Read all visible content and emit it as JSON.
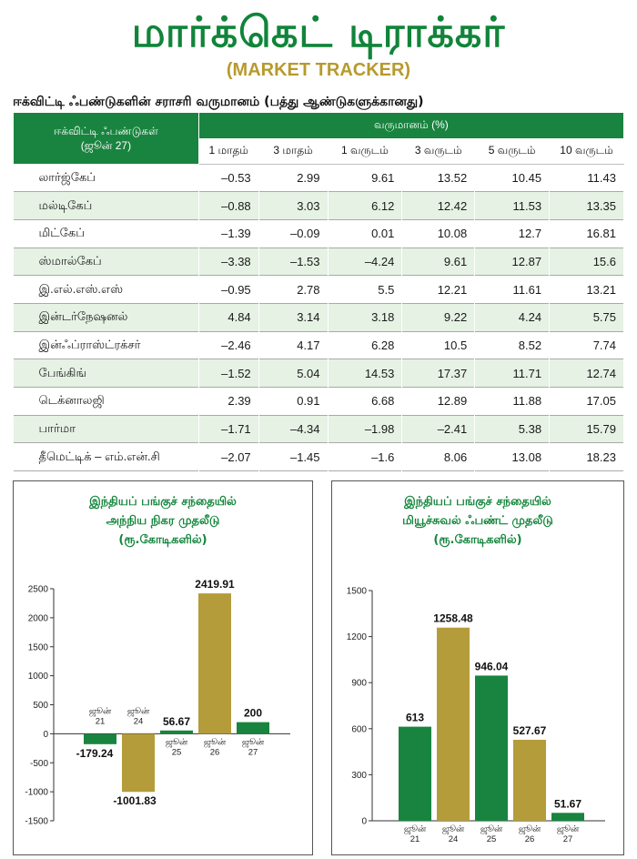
{
  "header": {
    "title": "மார்க்கெட் டிராக்கர்",
    "subtitle": "(MARKET TRACKER)",
    "caption": "ஈக்விட்டி ஃபண்டுகளின் சராசரி வருமானம் (பத்து ஆண்டுகளுக்கானது)"
  },
  "table": {
    "fund_header_line1": "ஈக்விட்டி ஃபண்டுகள்",
    "fund_header_line2": "(ஜூன் 27)",
    "returns_header": "வருமானம் (%)",
    "periods": [
      "1 மாதம்",
      "3 மாதம்",
      "1 வருடம்",
      "3 வருடம்",
      "5 வருடம்",
      "10 வருடம்"
    ],
    "rows": [
      {
        "fund": "லார்ஜ்கேப்",
        "values": [
          "–0.53",
          "2.99",
          "9.61",
          "13.52",
          "10.45",
          "11.43"
        ]
      },
      {
        "fund": "மல்டிகேப்",
        "values": [
          "–0.88",
          "3.03",
          "6.12",
          "12.42",
          "11.53",
          "13.35"
        ]
      },
      {
        "fund": "மிட்கேப்",
        "values": [
          "–1.39",
          "–0.09",
          "0.01",
          "10.08",
          "12.7",
          "16.81"
        ]
      },
      {
        "fund": "ஸ்மால்கேப்",
        "values": [
          "–3.38",
          "–1.53",
          "–4.24",
          "9.61",
          "12.87",
          "15.6"
        ]
      },
      {
        "fund": "இ.எல்.எஸ்.எஸ்",
        "values": [
          "–0.95",
          "2.78",
          "5.5",
          "12.21",
          "11.61",
          "13.21"
        ]
      },
      {
        "fund": "இன்டர்நேஷனல்",
        "values": [
          "4.84",
          "3.14",
          "3.18",
          "9.22",
          "4.24",
          "5.75"
        ]
      },
      {
        "fund": "இன்ஃப்ராஸ்ட்ரக்சர்",
        "values": [
          "–2.46",
          "4.17",
          "6.28",
          "10.5",
          "8.52",
          "7.74"
        ]
      },
      {
        "fund": "பேங்கிங்",
        "values": [
          "–1.52",
          "5.04",
          "14.53",
          "17.37",
          "11.71",
          "12.74"
        ]
      },
      {
        "fund": "டெக்னாலஜி",
        "values": [
          "2.39",
          "0.91",
          "6.68",
          "12.89",
          "11.88",
          "17.05"
        ]
      },
      {
        "fund": "பார்மா",
        "values": [
          "–1.71",
          "–4.34",
          "–1.98",
          "–2.41",
          "5.38",
          "15.79"
        ]
      },
      {
        "fund": "தீமெட்டிக் – எம்.என்.சி",
        "values": [
          "–2.07",
          "–1.45",
          "–1.6",
          "8.06",
          "13.08",
          "18.23"
        ]
      }
    ]
  },
  "colors": {
    "green": "#19843f",
    "gold": "#b59c3a",
    "stripe": "#e6f2e4"
  },
  "chart_data": [
    {
      "type": "bar",
      "title": [
        "இந்தியப் பங்குச் சந்தையில்",
        "அந்நிய நிகர முதலீடு",
        "(ரூ.கோடிகளில்)"
      ],
      "categories": [
        [
          "ஜூன்",
          "21"
        ],
        [
          "ஜூன்",
          "24"
        ],
        [
          "ஜூன்",
          "25"
        ],
        [
          "ஜூன்",
          "26"
        ],
        [
          "ஜூன்",
          "27"
        ]
      ],
      "values": [
        -179.24,
        -1001.83,
        56.67,
        2419.91,
        200
      ],
      "value_labels": [
        "-179.24",
        "-1001.83",
        "56.67",
        "2419.91",
        "200"
      ],
      "bar_colors": [
        "#19843f",
        "#b59c3a",
        "#19843f",
        "#b59c3a",
        "#19843f"
      ],
      "ylim": [
        -1500,
        2500
      ],
      "yticks": [
        -1500,
        -1000,
        -500,
        0,
        500,
        1000,
        1500,
        2000,
        2500
      ]
    },
    {
      "type": "bar",
      "title": [
        "இந்தியப் பங்குச் சந்தையில்",
        "மியூச்சுவல் ஃபண்ட் முதலீடு",
        "(ரூ.கோடிகளில்)"
      ],
      "categories": [
        [
          "ஜூன்",
          "21"
        ],
        [
          "ஜூன்",
          "24"
        ],
        [
          "ஜூன்",
          "25"
        ],
        [
          "ஜூன்",
          "26"
        ],
        [
          "ஜூன்",
          "27"
        ]
      ],
      "values": [
        613,
        1258.48,
        946.04,
        527.67,
        51.67
      ],
      "value_labels": [
        "613",
        "1258.48",
        "946.04",
        "527.67",
        "51.67"
      ],
      "bar_colors": [
        "#19843f",
        "#b59c3a",
        "#19843f",
        "#b59c3a",
        "#19843f"
      ],
      "ylim": [
        0,
        1500
      ],
      "yticks": [
        0,
        300,
        600,
        900,
        1200,
        1500
      ]
    }
  ]
}
